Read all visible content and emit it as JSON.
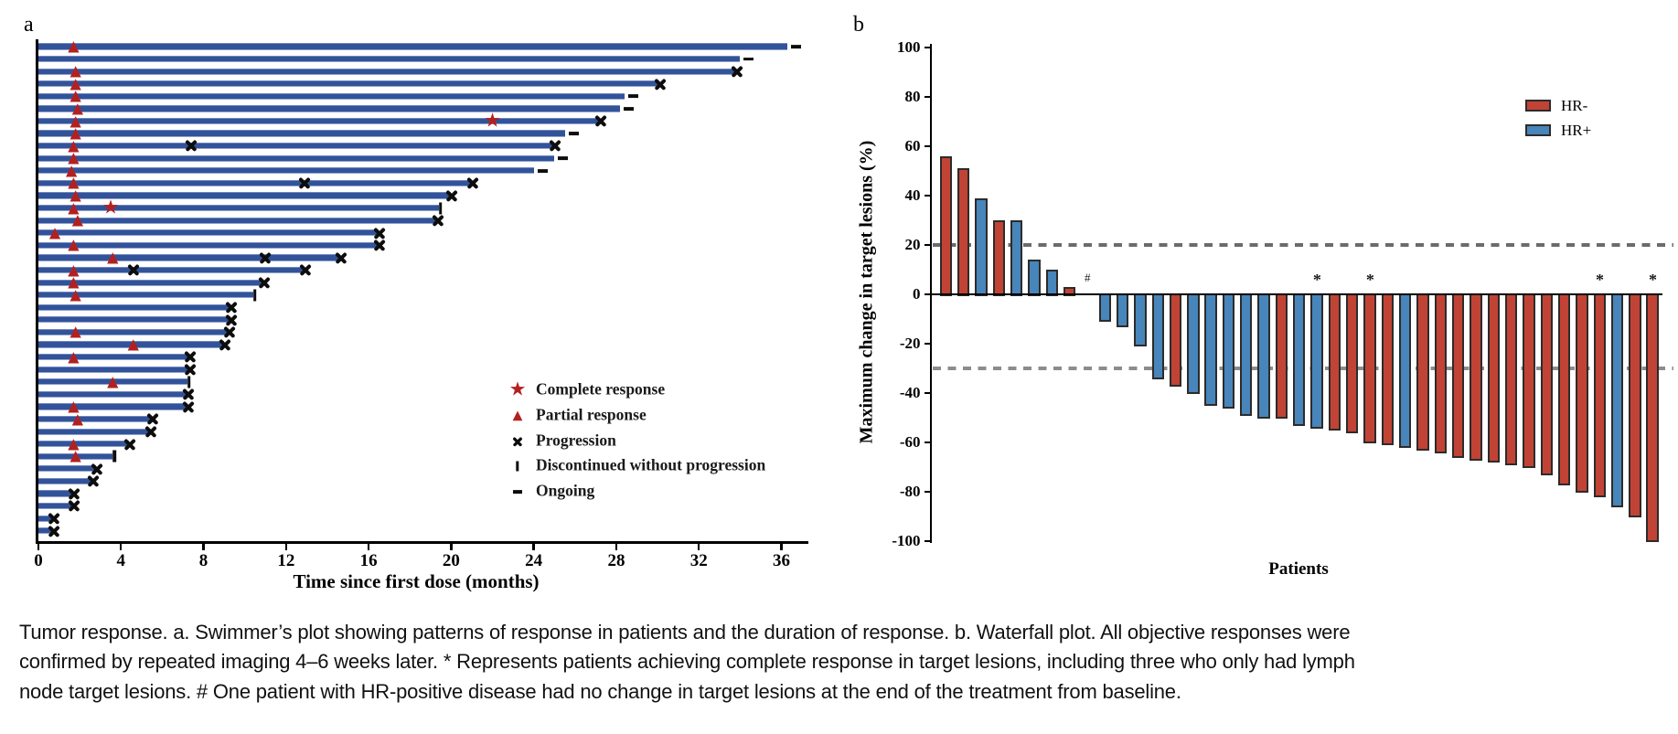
{
  "figure": {
    "panel_a_label": "a",
    "panel_b_label": "b",
    "caption_lines": [
      "Tumor response. a. Swimmer’s plot showing patterns of response in patients and the duration of response. b. Waterfall plot. All objective responses were",
      "confirmed by repeated imaging 4–6 weeks later. * Represents patients achieving complete response in target lesions, including three who only had lymph",
      "node target lesions. # One patient with HR-positive disease had no change in target lesions at the end of the treatment from baseline."
    ]
  },
  "chart_data": [
    {
      "type": "bar",
      "name": "swimmers-plot",
      "orientation": "horizontal",
      "xlabel": "Time since first dose (months)",
      "xticks": [
        0,
        4,
        8,
        12,
        16,
        20,
        24,
        28,
        32,
        36
      ],
      "xlim": [
        0,
        37.5
      ],
      "bar_color": "#32539a",
      "marker_color": "#b32020",
      "legend": [
        {
          "marker": "star",
          "label": "Complete response"
        },
        {
          "marker": "triangle",
          "label": "Partial response"
        },
        {
          "marker": "cross",
          "label": "Progression"
        },
        {
          "marker": "vbar",
          "label": "Discontinued without progression"
        },
        {
          "marker": "dash",
          "label": "Ongoing"
        }
      ],
      "patients": [
        {
          "duration": 36.3,
          "end": "ongoing",
          "partial_response": 1.7
        },
        {
          "duration": 34.0,
          "end": "ongoing"
        },
        {
          "duration": 33.8,
          "end": "progression",
          "partial_response": 1.8
        },
        {
          "duration": 30.1,
          "end": "progression",
          "partial_response": 1.8
        },
        {
          "duration": 28.4,
          "end": "ongoing",
          "partial_response": 1.8
        },
        {
          "duration": 28.2,
          "end": "ongoing",
          "partial_response": 1.9
        },
        {
          "duration": 27.2,
          "end": "progression",
          "partial_response": 1.8,
          "complete_response": 22.0
        },
        {
          "duration": 25.5,
          "end": "ongoing",
          "partial_response": 1.8
        },
        {
          "duration": 25.0,
          "end": "progression",
          "partial_response": 1.7,
          "progression_events": [
            7.4
          ]
        },
        {
          "duration": 25.0,
          "end": "ongoing",
          "partial_response": 1.7
        },
        {
          "duration": 24.0,
          "end": "ongoing",
          "partial_response": 1.6
        },
        {
          "duration": 21.0,
          "end": "progression",
          "partial_response": 1.7,
          "progression_events": [
            12.9
          ]
        },
        {
          "duration": 20.0,
          "end": "progression",
          "partial_response": 1.8
        },
        {
          "duration": 19.4,
          "end": "discontinued",
          "partial_response": 1.7,
          "complete_response": 3.5
        },
        {
          "duration": 19.3,
          "end": "progression",
          "partial_response": 1.9
        },
        {
          "duration": 16.5,
          "end": "progression",
          "partial_response": 0.8
        },
        {
          "duration": 16.5,
          "end": "progression",
          "partial_response": 1.7
        },
        {
          "duration": 14.6,
          "end": "progression",
          "partial_response": 3.6,
          "progression_events": [
            11.0
          ]
        },
        {
          "duration": 12.9,
          "end": "progression",
          "partial_response": 1.7,
          "progression_events": [
            4.6
          ]
        },
        {
          "duration": 10.9,
          "end": "progression",
          "partial_response": 1.7
        },
        {
          "duration": 10.4,
          "end": "discontinued",
          "partial_response": 1.8
        },
        {
          "duration": 9.3,
          "end": "progression"
        },
        {
          "duration": 9.3,
          "end": "progression"
        },
        {
          "duration": 9.2,
          "end": "progression",
          "partial_response": 1.8
        },
        {
          "duration": 9.0,
          "end": "progression",
          "partial_response": 4.6
        },
        {
          "duration": 7.3,
          "end": "progression",
          "partial_response": 1.7
        },
        {
          "duration": 7.3,
          "end": "progression"
        },
        {
          "duration": 7.2,
          "end": "discontinued",
          "partial_response": 3.6
        },
        {
          "duration": 7.2,
          "end": "progression"
        },
        {
          "duration": 7.2,
          "end": "progression",
          "partial_response": 1.7
        },
        {
          "duration": 5.5,
          "end": "progression",
          "partial_response": 1.9
        },
        {
          "duration": 5.4,
          "end": "progression"
        },
        {
          "duration": 4.4,
          "end": "progression",
          "partial_response": 1.7
        },
        {
          "duration": 3.6,
          "end": "discontinued",
          "partial_response": 1.8
        },
        {
          "duration": 2.8,
          "end": "progression"
        },
        {
          "duration": 2.6,
          "end": "progression"
        },
        {
          "duration": 1.7,
          "end": "progression"
        },
        {
          "duration": 1.7,
          "end": "progression"
        },
        {
          "duration": 0.7,
          "end": "progression"
        },
        {
          "duration": 0.7,
          "end": "progression"
        }
      ]
    },
    {
      "type": "bar",
      "name": "waterfall-plot",
      "ylabel": "Maximum change in target lesions (%)",
      "xlabel": "Patients",
      "ylim": [
        -100,
        100
      ],
      "yticks": [
        100,
        80,
        60,
        40,
        20,
        0,
        -20,
        -40,
        -60,
        -80,
        -100
      ],
      "reference_lines": [
        20,
        -30
      ],
      "colors": {
        "HR-": "#c14335",
        "HR+": "#4785ba"
      },
      "legend": [
        {
          "label": "HR-",
          "color": "#c14335"
        },
        {
          "label": "HR+",
          "color": "#4785ba"
        }
      ],
      "patients": [
        {
          "value": 56,
          "group": "HR-"
        },
        {
          "value": 51,
          "group": "HR-"
        },
        {
          "value": 39,
          "group": "HR+"
        },
        {
          "value": 30,
          "group": "HR-"
        },
        {
          "value": 30,
          "group": "HR+"
        },
        {
          "value": 14,
          "group": "HR+"
        },
        {
          "value": 10,
          "group": "HR+"
        },
        {
          "value": 3,
          "group": "HR-"
        },
        {
          "value": 0,
          "group": "HR+",
          "annotation": "#"
        },
        {
          "value": -11,
          "group": "HR+"
        },
        {
          "value": -13,
          "group": "HR+"
        },
        {
          "value": -21,
          "group": "HR+"
        },
        {
          "value": -34,
          "group": "HR+"
        },
        {
          "value": -37,
          "group": "HR-"
        },
        {
          "value": -40,
          "group": "HR+"
        },
        {
          "value": -45,
          "group": "HR+"
        },
        {
          "value": -46,
          "group": "HR+"
        },
        {
          "value": -49,
          "group": "HR+"
        },
        {
          "value": -50,
          "group": "HR+"
        },
        {
          "value": -50,
          "group": "HR-"
        },
        {
          "value": -53,
          "group": "HR+"
        },
        {
          "value": -54,
          "group": "HR+",
          "annotation": "*"
        },
        {
          "value": -55,
          "group": "HR-"
        },
        {
          "value": -56,
          "group": "HR-"
        },
        {
          "value": -60,
          "group": "HR-",
          "annotation": "*"
        },
        {
          "value": -61,
          "group": "HR-"
        },
        {
          "value": -62,
          "group": "HR+"
        },
        {
          "value": -63,
          "group": "HR-"
        },
        {
          "value": -64,
          "group": "HR-"
        },
        {
          "value": -66,
          "group": "HR-"
        },
        {
          "value": -67,
          "group": "HR-"
        },
        {
          "value": -68,
          "group": "HR-"
        },
        {
          "value": -69,
          "group": "HR-"
        },
        {
          "value": -70,
          "group": "HR-"
        },
        {
          "value": -73,
          "group": "HR-"
        },
        {
          "value": -77,
          "group": "HR-"
        },
        {
          "value": -80,
          "group": "HR-"
        },
        {
          "value": -82,
          "group": "HR-",
          "annotation": "*"
        },
        {
          "value": -86,
          "group": "HR+"
        },
        {
          "value": -90,
          "group": "HR-"
        },
        {
          "value": -100,
          "group": "HR-",
          "annotation": "*"
        }
      ]
    }
  ]
}
